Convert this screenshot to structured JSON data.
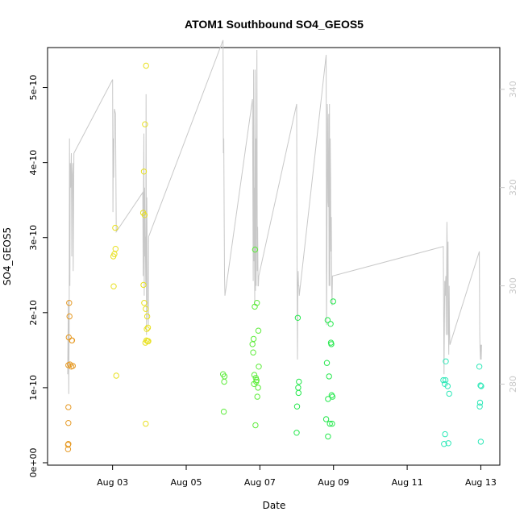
{
  "chart_data": {
    "type": "scatter",
    "title": "ATOM1 Southbound SO4_GEOS5",
    "xlabel": "Date",
    "ylabel": "SO4_GEOS5",
    "x_unit": "days since Aug 01",
    "xlim": [
      1.3,
      13.45
    ],
    "ylim": [
      0,
      5.5e-10
    ],
    "y2lim": [
      264,
      348
    ],
    "x_ticks": [
      {
        "value": 3,
        "label": "Aug 03"
      },
      {
        "value": 5,
        "label": "Aug 05"
      },
      {
        "value": 7,
        "label": "Aug 07"
      },
      {
        "value": 9,
        "label": "Aug 09"
      },
      {
        "value": 11,
        "label": "Aug 11"
      },
      {
        "value": 13,
        "label": "Aug 13"
      }
    ],
    "y_ticks": [
      {
        "value": 0,
        "label": "0e+00"
      },
      {
        "value": 1e-10,
        "label": "1e-10"
      },
      {
        "value": 2e-10,
        "label": "2e-10"
      },
      {
        "value": 3e-10,
        "label": "3e-10"
      },
      {
        "value": 4e-10,
        "label": "4e-10"
      },
      {
        "value": 5e-10,
        "label": "5e-10"
      }
    ],
    "y2_ticks": [
      {
        "value": 280,
        "label": "280"
      },
      {
        "value": 300,
        "label": "300"
      },
      {
        "value": 320,
        "label": "320"
      },
      {
        "value": 340,
        "label": "340"
      }
    ],
    "colors": {
      "axis": "#000000",
      "right_axis": "#c8c8c8",
      "line": "#c8c8c8"
    },
    "grid": false,
    "series": [
      {
        "color": "#e69a25",
        "points": [
          [
            1.79,
            1.8e-11
          ],
          [
            1.79,
            2.4e-11
          ],
          [
            1.8,
            2.5e-11
          ],
          [
            1.8,
            5.3e-11
          ],
          [
            1.8,
            7.4e-11
          ],
          [
            1.8,
            1.3e-10
          ],
          [
            1.81,
            1.67e-10
          ],
          [
            1.82,
            2.13e-10
          ],
          [
            1.83,
            1.95e-10
          ],
          [
            1.84,
            1.31e-10
          ],
          [
            1.88,
            1.28e-10
          ],
          [
            1.89,
            1.63e-10
          ],
          [
            1.9,
            1.63e-10
          ],
          [
            1.92,
            1.29e-10
          ]
        ]
      },
      {
        "color": "#e8e020",
        "points": [
          [
            3.02,
            2.75e-10
          ],
          [
            3.03,
            2.35e-10
          ],
          [
            3.05,
            2.78e-10
          ],
          [
            3.07,
            3.13e-10
          ],
          [
            3.08,
            2.85e-10
          ],
          [
            3.1,
            1.16e-10
          ],
          [
            3.83,
            3.33e-10
          ],
          [
            3.84,
            2.37e-10
          ],
          [
            3.85,
            3.88e-10
          ],
          [
            3.86,
            2.13e-10
          ],
          [
            3.87,
            3.3e-10
          ],
          [
            3.88,
            4.51e-10
          ],
          [
            3.89,
            1.6e-10
          ],
          [
            3.9,
            2.05e-10
          ],
          [
            3.9,
            5.2e-11
          ],
          [
            3.91,
            5.29e-10
          ],
          [
            3.92,
            1.63e-10
          ],
          [
            3.93,
            1.78e-10
          ],
          [
            3.94,
            1.95e-10
          ],
          [
            3.95,
            1.62e-10
          ],
          [
            3.96,
            1.8e-10
          ],
          [
            3.97,
            1.62e-10
          ]
        ]
      },
      {
        "color": "#5cec3a",
        "points": [
          [
            6.0,
            1.18e-10
          ],
          [
            6.02,
            6.8e-11
          ],
          [
            6.03,
            1.08e-10
          ],
          [
            6.04,
            1.15e-10
          ],
          [
            6.8,
            1.58e-10
          ],
          [
            6.82,
            1.47e-10
          ],
          [
            6.83,
            1.65e-10
          ],
          [
            6.84,
            1.05e-10
          ],
          [
            6.85,
            1.17e-10
          ],
          [
            6.86,
            2.08e-10
          ],
          [
            6.87,
            2.84e-10
          ],
          [
            6.88,
            5e-11
          ],
          [
            6.89,
            1.13e-10
          ],
          [
            6.9,
            1.08e-10
          ],
          [
            6.91,
            1.1e-10
          ],
          [
            6.92,
            2.13e-10
          ],
          [
            6.93,
            8.8e-11
          ],
          [
            6.95,
            1e-10
          ],
          [
            6.96,
            1.76e-10
          ],
          [
            6.97,
            1.28e-10
          ]
        ]
      },
      {
        "color": "#25e84d",
        "points": [
          [
            8.0,
            4e-11
          ],
          [
            8.01,
            7.5e-11
          ],
          [
            8.03,
            1.93e-10
          ],
          [
            8.04,
            1e-10
          ],
          [
            8.05,
            9.3e-11
          ],
          [
            8.06,
            1.08e-10
          ],
          [
            8.8,
            5.8e-11
          ],
          [
            8.82,
            1.33e-10
          ],
          [
            8.84,
            1.9e-10
          ],
          [
            8.85,
            8.5e-11
          ],
          [
            8.85,
            3.5e-11
          ],
          [
            8.88,
            1.15e-10
          ],
          [
            8.9,
            5.2e-11
          ],
          [
            8.92,
            1.85e-10
          ],
          [
            8.93,
            1.6e-10
          ],
          [
            8.94,
            1.58e-10
          ],
          [
            8.95,
            9e-11
          ],
          [
            8.96,
            5.2e-11
          ],
          [
            8.97,
            8.8e-11
          ],
          [
            8.99,
            2.15e-10
          ]
        ]
      },
      {
        "color": "#2ee8b8",
        "points": [
          [
            11.98,
            1.1e-10
          ],
          [
            12.0,
            2.5e-11
          ],
          [
            12.02,
            1.05e-10
          ],
          [
            12.03,
            3.8e-11
          ],
          [
            12.04,
            1.1e-10
          ],
          [
            12.05,
            1.35e-10
          ],
          [
            12.1,
            1.02e-10
          ],
          [
            12.12,
            2.6e-11
          ],
          [
            12.14,
            9.2e-11
          ],
          [
            12.96,
            1.28e-10
          ],
          [
            12.97,
            7.5e-11
          ],
          [
            12.98,
            8e-11
          ],
          [
            12.99,
            1.03e-10
          ],
          [
            13.0,
            2.8e-11
          ],
          [
            13.01,
            1.02e-10
          ]
        ]
      }
    ],
    "line_y2": [
      [
        1.78,
        282
      ],
      [
        1.8,
        297
      ],
      [
        1.81,
        278
      ],
      [
        1.82,
        291
      ],
      [
        1.83,
        330
      ],
      [
        1.84,
        300
      ],
      [
        1.85,
        325
      ],
      [
        1.86,
        320
      ],
      [
        1.88,
        327
      ],
      [
        1.89,
        306
      ],
      [
        1.9,
        322
      ],
      [
        1.92,
        325
      ],
      [
        1.93,
        303
      ],
      [
        1.95,
        327
      ],
      [
        3.0,
        342
      ],
      [
        3.01,
        315
      ],
      [
        3.02,
        330
      ],
      [
        3.03,
        322
      ],
      [
        3.05,
        336
      ],
      [
        3.08,
        335
      ],
      [
        3.1,
        311
      ],
      [
        3.82,
        319
      ],
      [
        3.83,
        302
      ],
      [
        3.84,
        320
      ],
      [
        3.85,
        331
      ],
      [
        3.86,
        298
      ],
      [
        3.87,
        320
      ],
      [
        3.88,
        306
      ],
      [
        3.89,
        310
      ],
      [
        3.9,
        300
      ],
      [
        3.91,
        339
      ],
      [
        3.92,
        290
      ],
      [
        3.93,
        318
      ],
      [
        3.94,
        306
      ],
      [
        3.95,
        297
      ],
      [
        3.97,
        292
      ],
      [
        3.98,
        310
      ],
      [
        6.0,
        350
      ],
      [
        6.01,
        327
      ],
      [
        6.02,
        330
      ],
      [
        6.03,
        313
      ],
      [
        6.04,
        302
      ],
      [
        6.05,
        298
      ],
      [
        6.8,
        338
      ],
      [
        6.82,
        301
      ],
      [
        6.83,
        344
      ],
      [
        6.84,
        305
      ],
      [
        6.85,
        320
      ],
      [
        6.86,
        296
      ],
      [
        6.87,
        344
      ],
      [
        6.88,
        299
      ],
      [
        6.89,
        330
      ],
      [
        6.9,
        300
      ],
      [
        6.91,
        330
      ],
      [
        6.92,
        348
      ],
      [
        6.93,
        303
      ],
      [
        6.94,
        312
      ],
      [
        6.95,
        300
      ],
      [
        6.96,
        300
      ],
      [
        6.97,
        302
      ],
      [
        8.0,
        337
      ],
      [
        8.01,
        300
      ],
      [
        8.02,
        285
      ],
      [
        8.03,
        300
      ],
      [
        8.04,
        303
      ],
      [
        8.05,
        300
      ],
      [
        8.06,
        300
      ],
      [
        8.07,
        298
      ],
      [
        8.8,
        347
      ],
      [
        8.81,
        292
      ],
      [
        8.82,
        305
      ],
      [
        8.83,
        337
      ],
      [
        8.84,
        334
      ],
      [
        8.85,
        317
      ],
      [
        8.86,
        316
      ],
      [
        8.87,
        335
      ],
      [
        8.88,
        300
      ],
      [
        8.89,
        337
      ],
      [
        8.9,
        300
      ],
      [
        8.91,
        330
      ],
      [
        8.92,
        322
      ],
      [
        8.93,
        307
      ],
      [
        8.94,
        314
      ],
      [
        8.95,
        300
      ],
      [
        8.96,
        296
      ],
      [
        8.97,
        302
      ],
      [
        11.98,
        308
      ],
      [
        12.0,
        282
      ],
      [
        12.02,
        301
      ],
      [
        12.03,
        298
      ],
      [
        12.05,
        302
      ],
      [
        12.06,
        290
      ],
      [
        12.08,
        313
      ],
      [
        12.09,
        306
      ],
      [
        12.1,
        290
      ],
      [
        12.11,
        309
      ],
      [
        12.12,
        292
      ],
      [
        12.13,
        286
      ],
      [
        12.14,
        300
      ],
      [
        12.15,
        291
      ],
      [
        12.16,
        288
      ],
      [
        12.96,
        307
      ],
      [
        12.97,
        290
      ],
      [
        12.98,
        287
      ],
      [
        12.99,
        285
      ],
      [
        13.0,
        288
      ],
      [
        13.01,
        285
      ],
      [
        13.02,
        288
      ]
    ]
  }
}
